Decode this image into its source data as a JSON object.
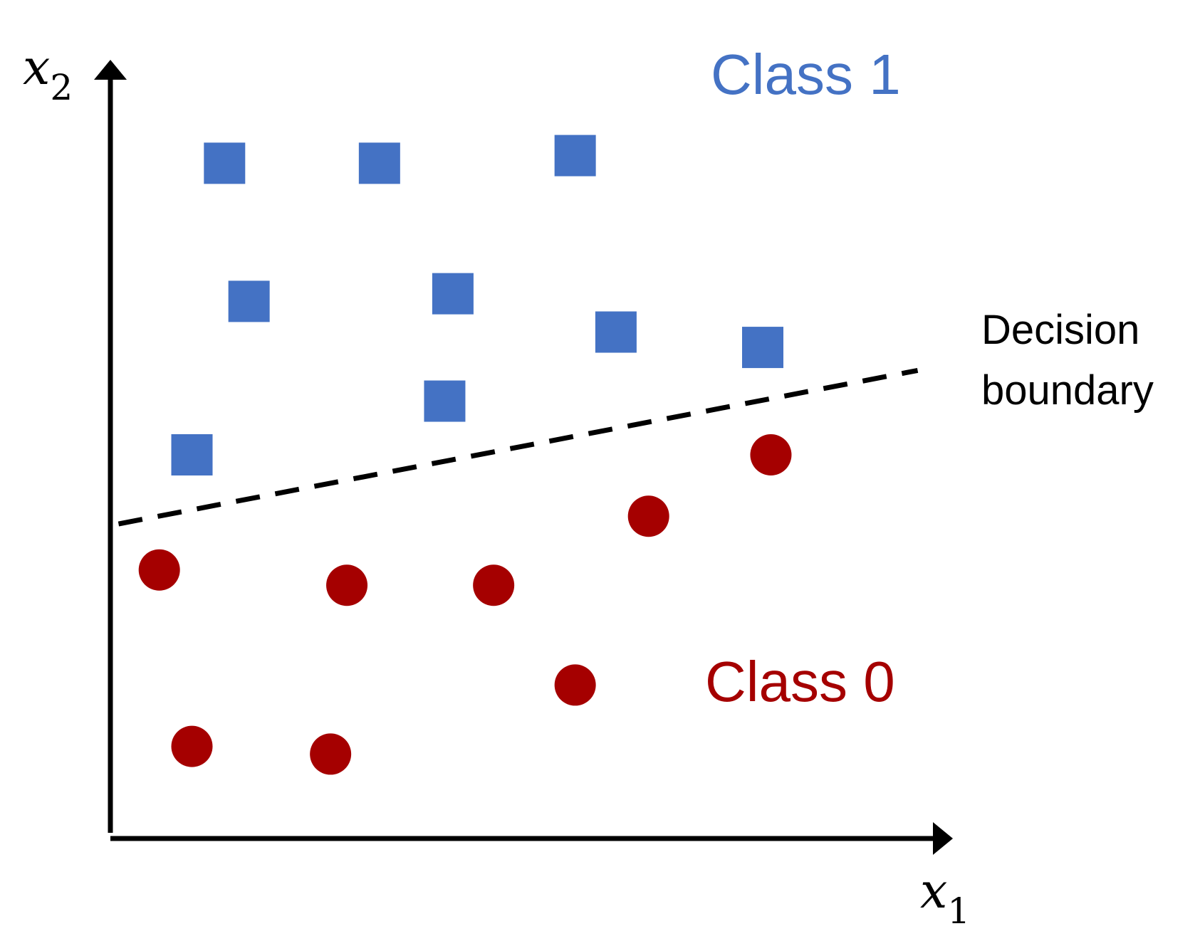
{
  "axes": {
    "x": {
      "var": "x",
      "sub": "1"
    },
    "y": {
      "var": "x",
      "sub": "2"
    }
  },
  "labels": {
    "class1": "Class 1",
    "class0": "Class 0",
    "boundary_line1": "Decision",
    "boundary_line2": "boundary"
  },
  "colors": {
    "class1": "#4472C4",
    "class0": "#A50000",
    "axis": "#000000",
    "boundary": "#000000"
  },
  "chart_data": {
    "type": "scatter",
    "xlim": [
      0,
      100
    ],
    "ylim": [
      0,
      100
    ],
    "series": [
      {
        "name": "Class 1",
        "marker": "square",
        "points": [
          [
            14,
            88
          ],
          [
            33,
            88
          ],
          [
            57,
            89
          ],
          [
            17,
            70
          ],
          [
            42,
            71
          ],
          [
            62,
            66
          ],
          [
            80,
            64
          ],
          [
            41,
            57
          ],
          [
            10,
            50
          ]
        ]
      },
      {
        "name": "Class 0",
        "marker": "circle",
        "points": [
          [
            81,
            50
          ],
          [
            66,
            42
          ],
          [
            6,
            35
          ],
          [
            29,
            33
          ],
          [
            47,
            33
          ],
          [
            57,
            20
          ],
          [
            10,
            12
          ],
          [
            27,
            11
          ]
        ]
      }
    ],
    "decision_boundary": {
      "style": "dashed",
      "from": [
        1,
        41
      ],
      "to": [
        99,
        61
      ]
    }
  }
}
